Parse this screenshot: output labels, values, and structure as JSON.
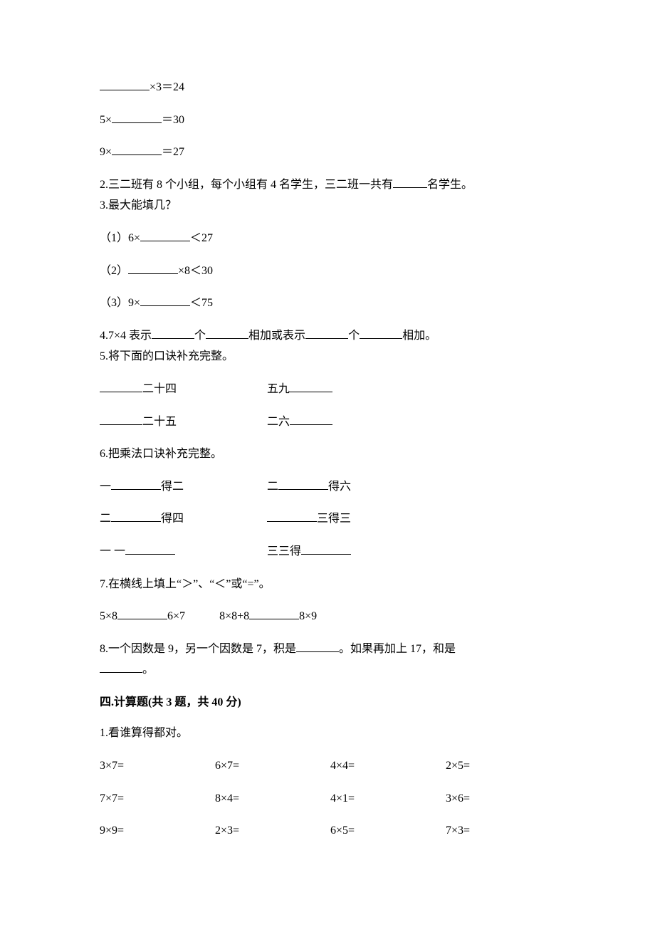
{
  "q1": {
    "eq1_suffix": "×3＝24",
    "eq2_prefix": "5×",
    "eq2_suffix": "＝30",
    "eq3_prefix": "9×",
    "eq3_suffix": "＝27"
  },
  "q2": {
    "text_a": "2.三二班有 8 个小组，每个小组有 4 名学生，三二班一共有",
    "text_b": "名学生。"
  },
  "q3": {
    "title": "3.最大能填几？",
    "p1_a": "（1）6×",
    "p1_b": "＜27",
    "p2_a": "（2）",
    "p2_b": "×8＜30",
    "p3_a": "（3）9×",
    "p3_b": "＜75"
  },
  "q4": {
    "a": "4.7×4 表示",
    "b": "个",
    "c": "相加或表示",
    "d": "个",
    "e": "相加。"
  },
  "q5": {
    "title": "5.将下面的口诀补充完整。",
    "r1c1": "二十四",
    "r1c2a": "五九",
    "r2c1": "二十五",
    "r2c2a": "二六"
  },
  "q6": {
    "title": "6.把乘法口诀补充完整。",
    "r1c1a": "一",
    "r1c1b": "得二",
    "r1c2a": "二",
    "r1c2b": "得六",
    "r2c1a": "二",
    "r2c1b": "得四",
    "r2c2b": "三得三",
    "r3c1a": "一 一",
    "r3c2a": "三三得"
  },
  "q7": {
    "title": "7.在横线上填上“＞”、“＜”或“=”。",
    "l1a": "5×8",
    "l1b": "6×7",
    "l2a": "8×8+8",
    "l2b": "8×9"
  },
  "q8": {
    "a": "8.一个因数是 9，另一个因数是 7，积是",
    "b": "。如果再加上 17，和是",
    "c": "。"
  },
  "section4": {
    "heading": "四.计算题(共 3 题，共 40 分)",
    "q1_title": "1.看谁算得都对。",
    "rows": [
      [
        "3×7=",
        "6×7=",
        "4×4=",
        "2×5="
      ],
      [
        "7×7=",
        "8×4=",
        "4×1=",
        "3×6="
      ],
      [
        "9×9=",
        "2×3=",
        "6×5=",
        "7×3="
      ]
    ]
  }
}
